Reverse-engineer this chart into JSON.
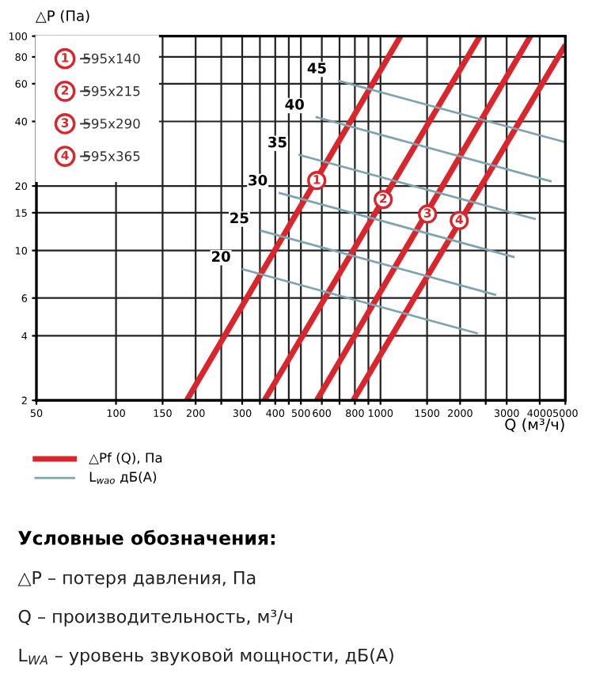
{
  "chart_data": {
    "type": "line",
    "ylabel": "△P (Па)",
    "xlabel": "Q (м³/ч)",
    "subtitle": "Условные обозначения:",
    "log": "xy",
    "grid": true,
    "legend": "top left",
    "xlim": [
      50,
      5000
    ],
    "ylim": [
      2,
      100
    ],
    "xticks": [
      50,
      100,
      150,
      200,
      {
        "value": 250,
        "label": null
      },
      300,
      {
        "value": 350,
        "label": null
      },
      400,
      {
        "value": 450,
        "label": null
      },
      500,
      600,
      {
        "value": 700,
        "label": null
      },
      800,
      {
        "value": 900,
        "label": null
      },
      1000,
      1500,
      2000,
      {
        "value": 2500,
        "label": null
      },
      3000,
      4000,
      5000
    ],
    "yticks": [
      2,
      4,
      6,
      10,
      15,
      20,
      40,
      60,
      80,
      100
    ],
    "series": [
      {
        "name": "595x140",
        "color": "#d9252b",
        "x": [
          185,
          1191
        ],
        "values": [
          2,
          100
        ]
      },
      {
        "name": "595x215",
        "color": "#d9252b",
        "x": [
          364,
          2376
        ],
        "values": [
          2,
          100
        ]
      },
      {
        "name": "595x290",
        "color": "#d9252b",
        "x": [
          574,
          3690
        ],
        "values": [
          2,
          100
        ]
      },
      {
        "name": "595x365",
        "color": "#d9252b",
        "x": [
          789,
          5000
        ],
        "values": [
          2,
          91
        ]
      },
      {
        "name": "20",
        "color": "#7fa3b0",
        "x": [
          299,
          2333
        ],
        "values": [
          8.2,
          4.1
        ]
      },
      {
        "name": "25",
        "color": "#7fa3b0",
        "x": [
          351,
          2737
        ],
        "values": [
          12.4,
          6.2
        ]
      },
      {
        "name": "30",
        "color": "#7fa3b0",
        "x": [
          412,
          3216
        ],
        "values": [
          18.6,
          9.3
        ]
      },
      {
        "name": "35",
        "color": "#7fa3b0",
        "x": [
          489,
          3864
        ],
        "values": [
          28,
          14
        ]
      },
      {
        "name": "40",
        "color": "#7fa3b0",
        "x": [
          568,
          4434
        ],
        "values": [
          42,
          21
        ]
      },
      {
        "name": "45",
        "color": "#7fa3b0",
        "x": [
          690,
          5000
        ],
        "values": [
          62,
          32
        ]
      }
    ],
    "annotations": [
      {
        "text": "1",
        "x": 574,
        "y": 21.2
      },
      {
        "text": "2",
        "x": 1024,
        "y": 17.3
      },
      {
        "text": "3",
        "x": 1506,
        "y": 14.8
      },
      {
        "text": "4",
        "x": 1985,
        "y": 13.8
      },
      "△Pf (Q), Па",
      "L$_{wao}$ дБ(А)",
      "△P – потеря давления, Па",
      "Q – производительность, м³/ч",
      "L$_{WA}$ – уровень звуковой мощности, дБ(А)"
    ]
  }
}
